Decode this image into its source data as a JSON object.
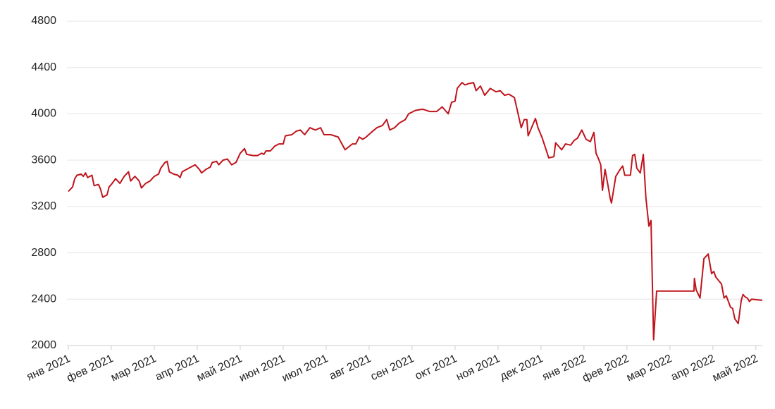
{
  "chart_data": {
    "type": "line",
    "color": "#c0141c",
    "grid": true,
    "x": [
      0,
      0.1,
      0.15,
      0.2,
      0.3,
      0.35,
      0.4,
      0.45,
      0.55,
      0.6,
      0.7,
      0.75,
      0.8,
      0.9,
      0.95,
      1.0,
      1.1,
      1.2,
      1.3,
      1.4,
      1.45,
      1.55,
      1.65,
      1.7,
      1.8,
      1.9,
      2.0,
      2.1,
      2.15,
      2.25,
      2.3,
      2.35,
      2.45,
      2.55,
      2.6,
      2.65,
      2.75,
      2.85,
      2.95,
      3.05,
      3.1,
      3.2,
      3.3,
      3.35,
      3.45,
      3.5,
      3.6,
      3.7,
      3.8,
      3.9,
      4.0,
      4.1,
      4.15,
      4.3,
      4.4,
      4.5,
      4.55,
      4.6,
      4.7,
      4.8,
      4.9,
      5.0,
      5.05,
      5.2,
      5.3,
      5.4,
      5.5,
      5.62,
      5.75,
      5.87,
      5.95,
      6.11,
      6.28,
      6.44,
      6.61,
      6.69,
      6.77,
      6.85,
      6.93,
      7.05,
      7.18,
      7.31,
      7.41,
      7.48,
      7.59,
      7.7,
      7.84,
      7.92,
      8.08,
      8.25,
      8.41,
      8.57,
      8.7,
      8.84,
      8.92,
      9.0,
      9.05,
      9.16,
      9.23,
      9.31,
      9.43,
      9.49,
      9.59,
      9.69,
      9.82,
      9.95,
      10.05,
      10.15,
      10.25,
      10.38,
      10.46,
      10.54,
      10.61,
      10.67,
      10.7,
      10.87,
      10.93,
      11.03,
      11.18,
      11.3,
      11.34,
      11.48,
      11.57,
      11.69,
      11.77,
      11.85,
      11.95,
      12.05,
      12.15,
      12.23,
      12.28,
      12.34,
      12.39,
      12.43,
      12.49,
      12.56,
      12.61,
      12.64,
      12.74,
      12.84,
      12.9,
      12.95,
      13.08,
      13.13,
      13.18,
      13.23,
      13.31,
      13.38,
      13.44,
      13.51,
      13.56,
      13.62,
      13.69,
      14.56,
      14.57,
      14.61,
      14.7,
      14.79,
      14.89,
      14.97,
      15.02,
      15.07,
      15.2,
      15.26,
      15.31,
      15.41,
      15.46,
      15.51,
      15.59,
      15.66,
      15.7,
      15.75,
      15.8,
      15.85,
      15.9,
      16.15
    ],
    "values": [
      3330,
      3370,
      3440,
      3470,
      3480,
      3460,
      3490,
      3450,
      3470,
      3380,
      3390,
      3350,
      3280,
      3300,
      3370,
      3390,
      3440,
      3400,
      3460,
      3500,
      3420,
      3460,
      3420,
      3360,
      3400,
      3420,
      3460,
      3480,
      3530,
      3580,
      3590,
      3500,
      3480,
      3470,
      3450,
      3500,
      3520,
      3540,
      3560,
      3520,
      3490,
      3520,
      3540,
      3580,
      3590,
      3560,
      3600,
      3610,
      3560,
      3580,
      3660,
      3700,
      3650,
      3640,
      3640,
      3660,
      3650,
      3680,
      3680,
      3720,
      3740,
      3740,
      3810,
      3820,
      3850,
      3860,
      3820,
      3880,
      3860,
      3880,
      3820,
      3820,
      3800,
      3690,
      3740,
      3740,
      3800,
      3780,
      3800,
      3840,
      3880,
      3900,
      3950,
      3860,
      3880,
      3920,
      3950,
      4000,
      4030,
      4040,
      4020,
      4020,
      4060,
      4000,
      4100,
      4110,
      4220,
      4270,
      4250,
      4260,
      4270,
      4200,
      4240,
      4160,
      4220,
      4190,
      4200,
      4160,
      4170,
      4140,
      4010,
      3880,
      3950,
      3950,
      3810,
      3960,
      3880,
      3790,
      3620,
      3630,
      3750,
      3690,
      3740,
      3730,
      3770,
      3790,
      3860,
      3780,
      3760,
      3840,
      3660,
      3610,
      3560,
      3340,
      3520,
      3380,
      3270,
      3230,
      3460,
      3520,
      3550,
      3470,
      3470,
      3640,
      3650,
      3530,
      3490,
      3650,
      3280,
      3030,
      3080,
      2050,
      2470,
      2470,
      2580,
      2480,
      2410,
      2750,
      2790,
      2620,
      2640,
      2590,
      2530,
      2410,
      2430,
      2330,
      2320,
      2230,
      2190,
      2390,
      2440,
      2420,
      2410,
      2380,
      2400,
      2390
    ],
    "xlim": [
      0,
      16.15
    ],
    "ylim": [
      2000,
      4800
    ],
    "yticks": [
      2000,
      2400,
      2800,
      3200,
      3600,
      4000,
      4400,
      4800
    ],
    "xticks": [
      {
        "value": 0,
        "label": "янв 2021"
      },
      {
        "value": 1,
        "label": "фев 2021"
      },
      {
        "value": 2,
        "label": "мар 2021"
      },
      {
        "value": 3,
        "label": "апр 2021"
      },
      {
        "value": 4,
        "label": "май 2021"
      },
      {
        "value": 5,
        "label": "июн 2021"
      },
      {
        "value": 6,
        "label": "июл 2021"
      },
      {
        "value": 7,
        "label": "авг 2021"
      },
      {
        "value": 8,
        "label": "сен 2021"
      },
      {
        "value": 9,
        "label": "окт 2021"
      },
      {
        "value": 10,
        "label": "ноя 2021"
      },
      {
        "value": 11,
        "label": "дек 2021"
      },
      {
        "value": 12,
        "label": "янв 2022"
      },
      {
        "value": 13,
        "label": "фев 2022"
      },
      {
        "value": 14,
        "label": "мар 2022"
      },
      {
        "value": 15,
        "label": "апр 2022"
      },
      {
        "value": 16,
        "label": "май 2022"
      }
    ]
  }
}
